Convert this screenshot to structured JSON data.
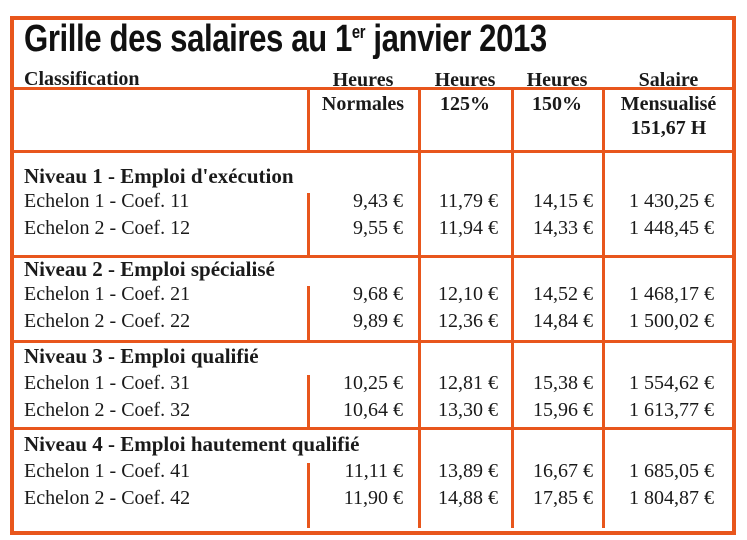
{
  "title": {
    "main": "Grille des salaires au 1",
    "sup": "er",
    "rest": " janvier 2013"
  },
  "columns": {
    "classification": "Classification",
    "normales": [
      "Heures",
      "Normales"
    ],
    "h125": [
      "Heures",
      "125%"
    ],
    "h150": [
      "Heures",
      "150%"
    ],
    "salaire": [
      "Salaire",
      "Mensualisé",
      "151,67 H"
    ]
  },
  "levels": [
    {
      "label": "Niveau 1 - Emploi d'exécution",
      "rows": [
        {
          "label": "Echelon 1 - Coef. 11",
          "normales": "9,43 €",
          "h125": "11,79 €",
          "h150": "14,15 €",
          "salaire": "1 430,25 €"
        },
        {
          "label": "Echelon 2 - Coef. 12",
          "normales": "9,55 €",
          "h125": "11,94 €",
          "h150": "14,33 €",
          "salaire": "1 448,45 €"
        }
      ]
    },
    {
      "label": "Niveau 2 - Emploi spécialisé",
      "rows": [
        {
          "label": "Echelon 1 - Coef. 21",
          "normales": "9,68 €",
          "h125": "12,10 €",
          "h150": "14,52 €",
          "salaire": "1 468,17 €"
        },
        {
          "label": "Echelon 2 - Coef. 22",
          "normales": "9,89 €",
          "h125": "12,36 €",
          "h150": "14,84 €",
          "salaire": "1 500,02 €"
        }
      ]
    },
    {
      "label": "Niveau 3 - Emploi qualifié",
      "rows": [
        {
          "label": "Echelon 1 - Coef. 31",
          "normales": "10,25 €",
          "h125": "12,81 €",
          "h150": "15,38 €",
          "salaire": "1 554,62 €"
        },
        {
          "label": "Echelon 2 - Coef. 32",
          "normales": "10,64 €",
          "h125": "13,30 €",
          "h150": "15,96 €",
          "salaire": "1 613,77 €"
        }
      ]
    },
    {
      "label": "Niveau 4 - Emploi hautement qualifié",
      "rows": [
        {
          "label": "Echelon 1 - Coef. 41",
          "normales": "11,11 €",
          "h125": "13,89 €",
          "h150": "16,67 €",
          "salaire": "1 685,05 €"
        },
        {
          "label": "Echelon 2 - Coef. 42",
          "normales": "11,90 €",
          "h125": "14,88 €",
          "h150": "17,85 €",
          "salaire": "1 804,87 €"
        }
      ]
    }
  ],
  "colors": {
    "border": "#e8561c"
  }
}
